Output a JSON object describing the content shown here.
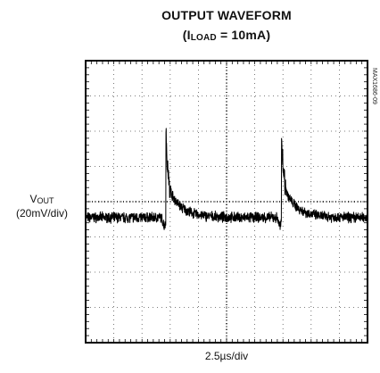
{
  "chart_data": {
    "type": "line",
    "title_line1": "OUTPUT WAVEFORM",
    "title_line2": {
      "open": "(I",
      "sub": "LOAD",
      "rest": " = 10mA)"
    },
    "ylabel": {
      "main": "V",
      "sub": "OUT",
      "scale": "(20mV/div)"
    },
    "xlabel": "2.5µs/div",
    "part_number": "MAX1686-09",
    "grid": true,
    "divisions": {
      "x": 10,
      "y": 8
    },
    "xlim": [
      0,
      10
    ],
    "ylim": [
      0,
      8
    ],
    "x_unit_note": "horizontal divisions (2.5µs each)",
    "y_unit_note": "vertical divisions (20mV each)",
    "series": [
      {
        "trace_color": "#000000",
        "baseline_div": 3.55,
        "noise_div": 0.12,
        "spikes": [
          {
            "x_div": 2.85,
            "peak_div": 6.05,
            "step_div": 1.0,
            "decay_tau_div": 0.45
          },
          {
            "x_div": 6.95,
            "peak_div": 6.05,
            "step_div": 1.0,
            "decay_tau_div": 0.45
          }
        ],
        "drop_points": [
          {
            "x_div": 2.8,
            "drop_div": 0.25
          },
          {
            "x_div": 6.9,
            "drop_div": 0.25
          }
        ]
      }
    ]
  }
}
